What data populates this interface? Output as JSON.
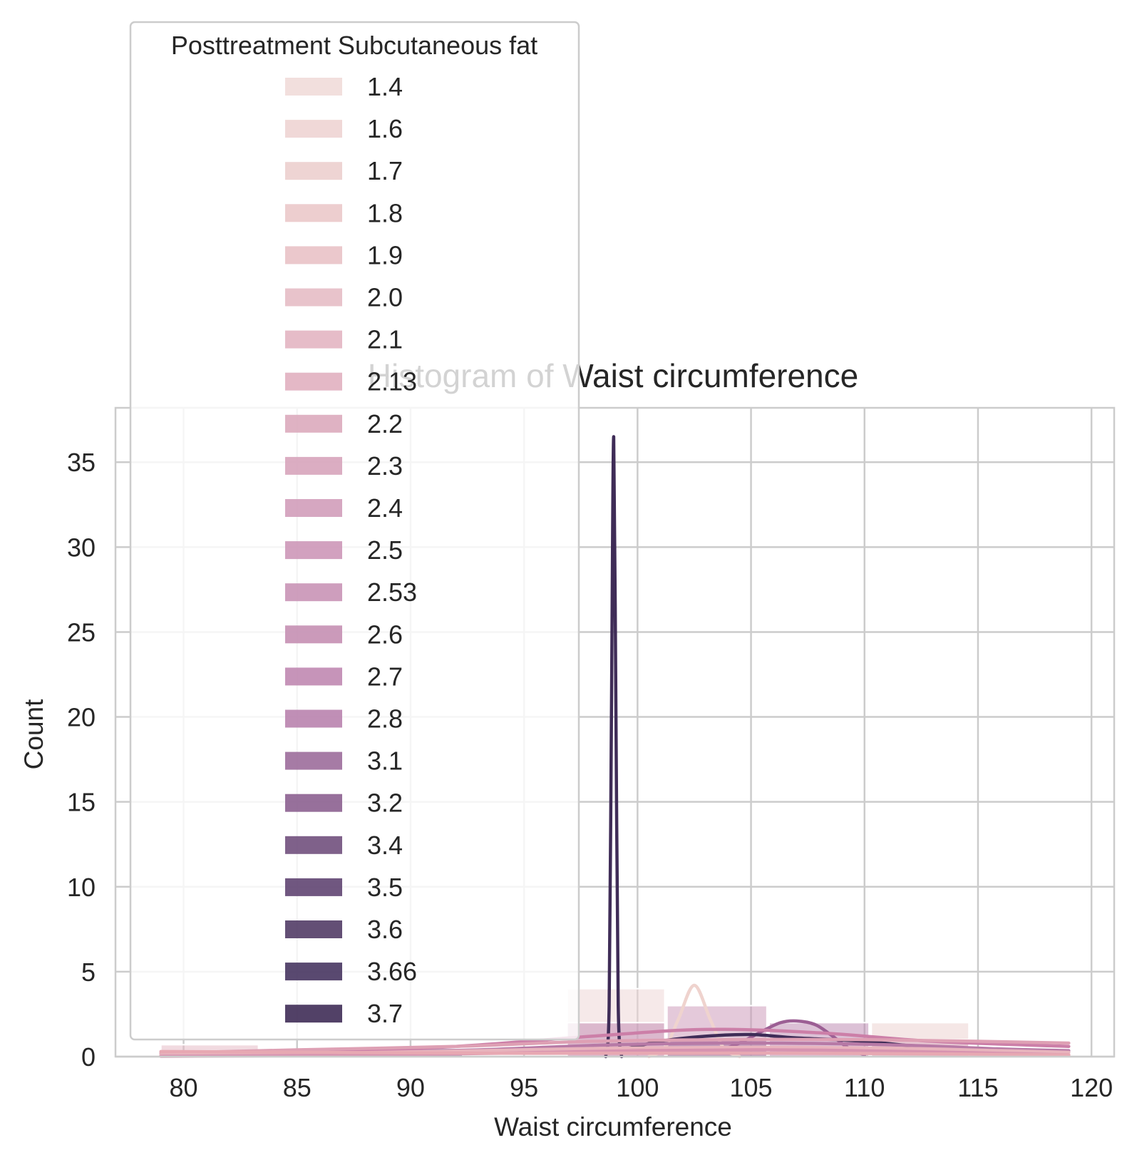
{
  "chart_data": {
    "type": "histogram",
    "title": "Histogram of Waist circumference",
    "xlabel": "Waist circumference",
    "ylabel": "Count",
    "xlim": [
      77,
      121
    ],
    "ylim": [
      0,
      38.2
    ],
    "x_ticks": [
      80,
      85,
      90,
      95,
      100,
      105,
      110,
      115,
      120
    ],
    "y_ticks": [
      0,
      5,
      10,
      15,
      20,
      25,
      30,
      35
    ],
    "grid": true,
    "legend": {
      "title": "Posttreatment Subcutaneous fat",
      "placement": "upper-left",
      "entries": [
        {
          "label": "1.4",
          "color": "#f1dcd9"
        },
        {
          "label": "1.6",
          "color": "#eed4d3"
        },
        {
          "label": "1.7",
          "color": "#eccfce"
        },
        {
          "label": "1.8",
          "color": "#ebc9ca"
        },
        {
          "label": "1.9",
          "color": "#e9c2c7"
        },
        {
          "label": "2.0",
          "color": "#e6bcc5"
        },
        {
          "label": "2.1",
          "color": "#e3b5c2"
        },
        {
          "label": "2.13",
          "color": "#e1b0c0"
        },
        {
          "label": "2.2",
          "color": "#dcaabd"
        },
        {
          "label": "2.3",
          "color": "#d7a4bb"
        },
        {
          "label": "2.4",
          "color": "#d29dba"
        },
        {
          "label": "2.5",
          "color": "#cd97b8"
        },
        {
          "label": "2.53",
          "color": "#c993b6"
        },
        {
          "label": "2.6",
          "color": "#c58fb3"
        },
        {
          "label": "2.7",
          "color": "#c088b1"
        },
        {
          "label": "2.8",
          "color": "#b983ae"
        },
        {
          "label": "3.1",
          "color": "#9c6d9b"
        },
        {
          "label": "3.2",
          "color": "#8c6190"
        },
        {
          "label": "3.4",
          "color": "#71507d"
        },
        {
          "label": "3.5",
          "color": "#614572"
        },
        {
          "label": "3.6",
          "color": "#523c66"
        },
        {
          "label": "3.66",
          "color": "#473561"
        },
        {
          "label": "3.7",
          "color": "#3f2c57"
        }
      ]
    },
    "bars": [
      {
        "x0": 79.0,
        "x1": 83.3,
        "count": 0.7,
        "color": "#e3b5c2"
      },
      {
        "x0": 83.4,
        "x1": 87.8,
        "count": 0.4,
        "color": "#e9c2c7"
      },
      {
        "x0": 87.9,
        "x1": 92.3,
        "count": 0.5,
        "color": "#71507d"
      },
      {
        "x0": 96.9,
        "x1": 101.2,
        "count": 4.0,
        "color": "#eed4d3"
      },
      {
        "x0": 96.9,
        "x1": 101.2,
        "count": 2.0,
        "color": "#c088b1"
      },
      {
        "x0": 101.3,
        "x1": 105.7,
        "count": 3.0,
        "color": "#c993b6"
      },
      {
        "x0": 101.3,
        "x1": 105.7,
        "count": 1.0,
        "color": "#9c6d9b"
      },
      {
        "x0": 105.8,
        "x1": 110.2,
        "count": 2.0,
        "color": "#b983ae"
      },
      {
        "x0": 110.3,
        "x1": 114.6,
        "count": 2.0,
        "color": "#eccfce"
      },
      {
        "x0": 110.3,
        "x1": 114.6,
        "count": 1.0,
        "color": "#d7a4bb"
      }
    ],
    "kde": [
      {
        "name": "3.66",
        "color": "#3f2c57",
        "points": [
          [
            98.6,
            0
          ],
          [
            98.75,
            3
          ],
          [
            98.85,
            20
          ],
          [
            98.95,
            36.5
          ],
          [
            99.05,
            20
          ],
          [
            99.15,
            3
          ],
          [
            99.3,
            0
          ]
        ]
      },
      {
        "name": "1.4",
        "color": "#efd3ce",
        "points": [
          [
            100.5,
            0
          ],
          [
            101.2,
            0.5
          ],
          [
            101.8,
            2.2
          ],
          [
            102.5,
            4.2
          ],
          [
            103.2,
            2.2
          ],
          [
            103.8,
            0.5
          ],
          [
            104.5,
            0
          ]
        ]
      },
      {
        "name": "3.1",
        "color": "#9c5f94",
        "points": [
          [
            103.5,
            0.3
          ],
          [
            104.5,
            0.8
          ],
          [
            105.5,
            1.5
          ],
          [
            106.3,
            2.0
          ],
          [
            107.0,
            2.1
          ],
          [
            107.8,
            1.9
          ],
          [
            108.5,
            1.3
          ],
          [
            109.3,
            0.5
          ],
          [
            110.0,
            0.1
          ]
        ]
      },
      {
        "name": "3.4",
        "color": "#3f2c57",
        "points": [
          [
            99,
            0.3
          ],
          [
            101,
            0.9
          ],
          [
            103,
            1.2
          ],
          [
            105,
            1.3
          ],
          [
            107,
            1.1
          ],
          [
            110,
            0.9
          ],
          [
            113,
            0.5
          ],
          [
            116,
            0.2
          ]
        ]
      },
      {
        "name": "2.53",
        "color": "#cc7fa8",
        "points": [
          [
            79,
            0.05
          ],
          [
            85,
            0.2
          ],
          [
            92,
            0.6
          ],
          [
            98,
            1.2
          ],
          [
            103,
            1.6
          ],
          [
            108,
            1.4
          ],
          [
            113,
            0.9
          ],
          [
            119,
            0.6
          ]
        ]
      },
      {
        "name": "2.0",
        "color": "#dea0b4",
        "points": [
          [
            79,
            0.2
          ],
          [
            85,
            0.4
          ],
          [
            92,
            0.6
          ],
          [
            98,
            0.9
          ],
          [
            104,
            1.0
          ],
          [
            110,
            1.0
          ],
          [
            115,
            0.9
          ],
          [
            119,
            0.8
          ]
        ]
      },
      {
        "name": "2.7",
        "color": "#b77aa6",
        "points": [
          [
            79,
            0.05
          ],
          [
            86,
            0.15
          ],
          [
            93,
            0.4
          ],
          [
            99,
            0.7
          ],
          [
            105,
            0.8
          ],
          [
            111,
            0.7
          ],
          [
            116,
            0.45
          ],
          [
            119,
            0.35
          ]
        ]
      },
      {
        "name": "1.9",
        "color": "#e8b4bd",
        "points": [
          [
            79,
            0.1
          ],
          [
            86,
            0.2
          ],
          [
            93,
            0.35
          ],
          [
            99,
            0.5
          ],
          [
            105,
            0.55
          ],
          [
            111,
            0.5
          ],
          [
            116,
            0.35
          ],
          [
            119,
            0.25
          ]
        ]
      },
      {
        "name": "2.2",
        "color": "#d793b0",
        "points": [
          [
            79,
            0.02
          ],
          [
            87,
            0.08
          ],
          [
            94,
            0.2
          ],
          [
            100,
            0.35
          ],
          [
            106,
            0.4
          ],
          [
            112,
            0.3
          ],
          [
            119,
            0.1
          ]
        ]
      },
      {
        "name": "1.7",
        "color": "#e7a8b2",
        "points": [
          [
            79,
            0.3
          ],
          [
            86,
            0.25
          ],
          [
            93,
            0.2
          ],
          [
            100,
            0.2
          ],
          [
            107,
            0.2
          ],
          [
            114,
            0.15
          ],
          [
            119,
            0.1
          ]
        ]
      }
    ]
  }
}
